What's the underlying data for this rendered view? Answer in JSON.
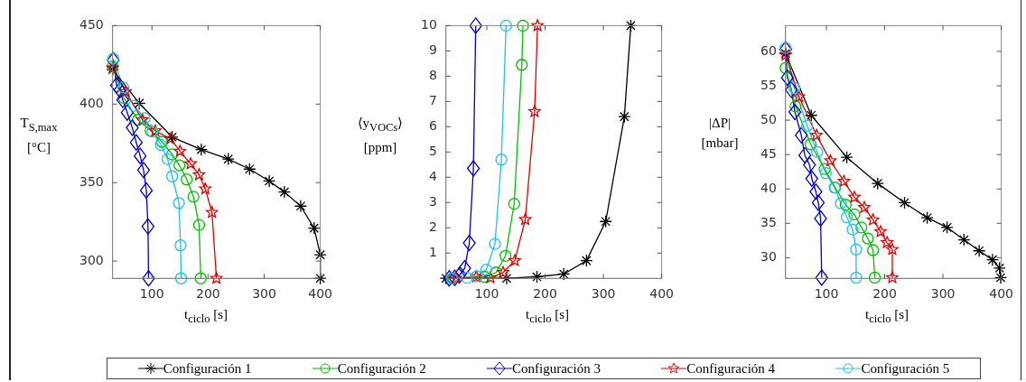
{
  "chart_data": [
    {
      "type": "line",
      "xlabel": "t$_{ciclo}$ [s]",
      "ylabel": "T$_{S,max}$ [°C]",
      "xlim": [
        30,
        400
      ],
      "ylim": [
        289,
        450
      ],
      "xticks": [
        100,
        200,
        300,
        400
      ],
      "yticks": [
        300,
        350,
        400,
        450
      ],
      "grid": false,
      "legend": "bottom",
      "line_style": "solid",
      "series": [
        {
          "name": "Configuración 1",
          "color": "#000000",
          "marker": "cross",
          "x": [
            30,
            77.6,
            136,
            188,
            236,
            274,
            309,
            336,
            365,
            389,
            400,
            400
          ],
          "values": [
            422,
            400.5,
            379,
            371,
            365,
            358.6,
            351,
            344,
            335,
            321,
            304,
            289
          ]
        },
        {
          "name": "Configuración 2",
          "color": "#00c000",
          "marker": "circle",
          "x": [
            30,
            50,
            75,
            97.6,
            118,
            136,
            149,
            162,
            174,
            184,
            187
          ],
          "values": [
            424,
            404,
            390,
            383,
            376,
            368,
            361,
            352,
            341,
            323,
            289
          ]
        },
        {
          "name": "Configuración 3",
          "color": "#0000c0",
          "marker": "diamond",
          "x": [
            31,
            37,
            43,
            48,
            56,
            65,
            72,
            79,
            85,
            90,
            93,
            94
          ],
          "values": [
            428,
            412,
            409,
            402.7,
            394.6,
            385,
            375.6,
            367,
            358,
            345,
            322,
            289
          ]
        },
        {
          "name": "Configuración 4",
          "color": "#e00000",
          "marker": "star",
          "x": [
            30,
            53,
            83,
            106,
            133,
            150,
            169,
            184,
            195,
            207,
            215
          ],
          "values": [
            423,
            408,
            390,
            383,
            378,
            370,
            362,
            355,
            346,
            331,
            289
          ]
        },
        {
          "name": "Configuración 5",
          "color": "#20c0f0",
          "marker": "circle",
          "x": [
            31,
            49,
            68,
            87,
            101,
            116,
            128,
            136,
            148,
            151,
            152
          ],
          "values": [
            429,
            410.6,
            399,
            391,
            382.5,
            374,
            365,
            354,
            337,
            310,
            289
          ]
        }
      ]
    },
    {
      "type": "line",
      "xlabel": "t$_{ciclo}$ [s]",
      "ylabel": "⟨y$_{VOCs}$⟩ [ppm]",
      "xlim": [
        30,
        400
      ],
      "ylim": [
        0,
        10
      ],
      "xticks": [
        100,
        200,
        300,
        400
      ],
      "yticks": [
        1,
        2,
        3,
        4,
        5,
        6,
        7,
        8,
        9,
        10
      ],
      "grid": false,
      "line_style": "solid",
      "series": [
        {
          "color": "#000000",
          "marker": "cross",
          "x": [
            30,
            134,
            186,
            232,
            271,
            304,
            336,
            347
          ],
          "values": [
            0,
            0,
            0.06,
            0.17,
            0.7,
            2.25,
            6.4,
            10
          ]
        },
        {
          "color": "#00c000",
          "marker": "circle",
          "x": [
            42,
            96,
            116,
            132,
            147,
            160,
            162
          ],
          "values": [
            0,
            0.06,
            0.23,
            0.89,
            2.95,
            8.45,
            10
          ]
        },
        {
          "color": "#0000c0",
          "marker": "diamond",
          "x": [
            35.5,
            45,
            54,
            62,
            70,
            77,
            81
          ],
          "values": [
            0,
            0.02,
            0.15,
            0.4,
            1.4,
            4.35,
            10
          ]
        },
        {
          "color": "#e00000",
          "marker": "star",
          "x": [
            47,
            82,
            106,
            128,
            148,
            166,
            182,
            187
          ],
          "values": [
            0,
            0.06,
            0.02,
            0.23,
            0.7,
            2.33,
            6.6,
            10
          ]
        },
        {
          "color": "#20c0f0",
          "marker": "circle",
          "x": [
            40,
            66,
            83,
            99,
            114,
            125,
            133
          ],
          "values": [
            0,
            0.02,
            0.08,
            0.34,
            1.36,
            4.7,
            10
          ]
        }
      ]
    },
    {
      "type": "line",
      "xlabel": "t$_{ciclo}$ [s]",
      "ylabel": "|ΔP| [mbar]",
      "xlim": [
        30,
        400
      ],
      "ylim": [
        27,
        63.75
      ],
      "xticks": [
        100,
        200,
        300,
        400
      ],
      "yticks": [
        30,
        35,
        40,
        45,
        50,
        55,
        60
      ],
      "grid": false,
      "line_style": "solid",
      "series": [
        {
          "color": "#000000",
          "marker": "cross",
          "x": [
            30,
            74,
            135,
            188,
            234,
            273,
            307,
            336,
            362,
            385,
            397,
            399
          ],
          "values": [
            59.7,
            50.7,
            44.6,
            40.8,
            38,
            35.8,
            34.4,
            32.6,
            31,
            29.7,
            28.5,
            27.1
          ]
        },
        {
          "color": "#00c000",
          "marker": "circle",
          "x": [
            30,
            47,
            73,
            97,
            115,
            133,
            148,
            160,
            171,
            180,
            183
          ],
          "values": [
            57.6,
            52,
            46.5,
            42.9,
            40.2,
            37.7,
            36.3,
            34.4,
            32.8,
            31.1,
            27.1
          ]
        },
        {
          "color": "#0000c0",
          "marker": "diamond",
          "x": [
            30,
            33,
            40,
            46,
            57,
            63,
            71,
            75,
            82,
            86,
            90,
            92
          ],
          "values": [
            60.3,
            56.2,
            54.4,
            51.2,
            47.8,
            44.9,
            43.5,
            41.5,
            39.6,
            38,
            35.7,
            27.1
          ]
        },
        {
          "color": "#e00000",
          "marker": "star",
          "x": [
            30,
            53,
            83,
            107,
            130,
            148,
            165,
            180,
            193,
            204,
            213,
            213
          ],
          "values": [
            59.5,
            53.4,
            47.8,
            44.1,
            41.1,
            38.8,
            37.3,
            35.5,
            33.8,
            32.2,
            31.2,
            27.1
          ]
        },
        {
          "color": "#20c0f0",
          "marker": "circle",
          "x": [
            30,
            45,
            67,
            84,
            99,
            114,
            125,
            135,
            145,
            151,
            151
          ],
          "values": [
            60.5,
            54.7,
            49.2,
            45.4,
            42.3,
            40.2,
            37.9,
            35.9,
            34.1,
            31.2,
            27.1
          ]
        }
      ]
    }
  ]
}
